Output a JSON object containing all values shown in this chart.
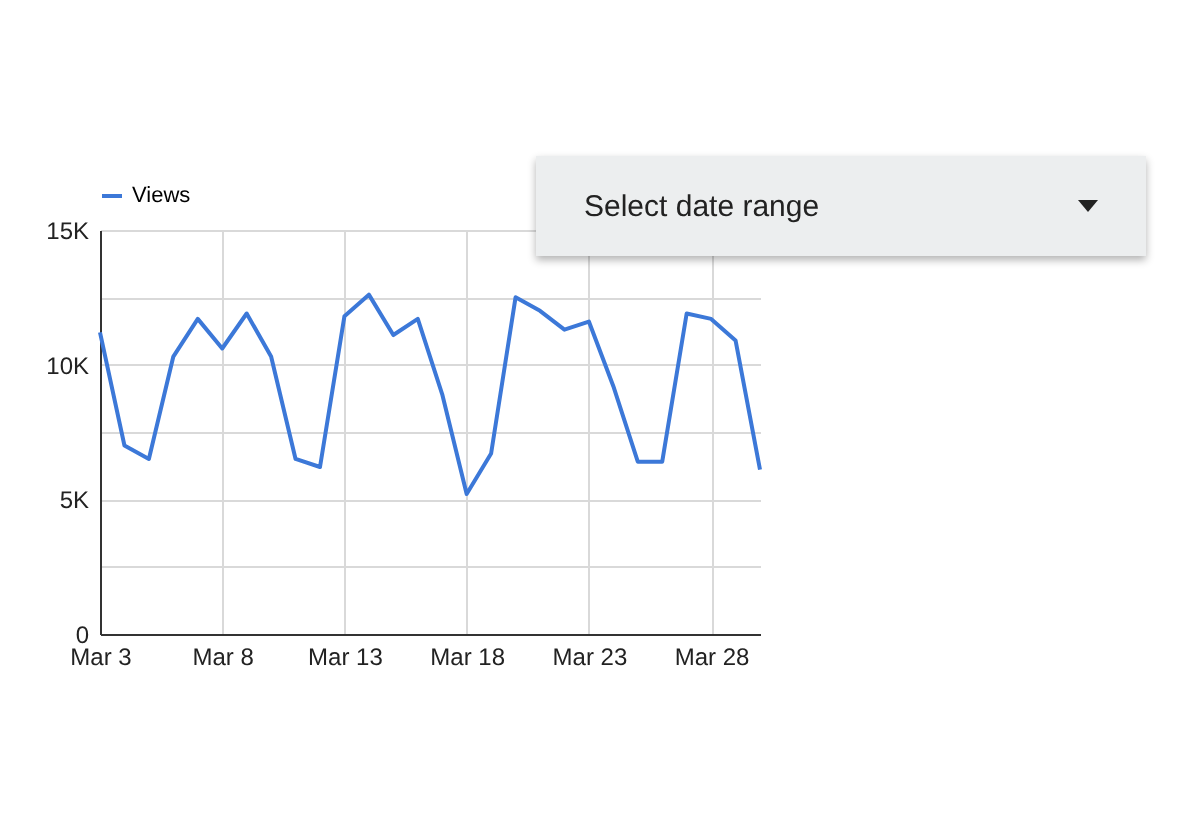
{
  "chart_data": {
    "type": "line",
    "x": [
      "--03-03",
      "--03-04",
      "--03-05",
      "--03-06",
      "--03-07",
      "--03-08",
      "--03-09",
      "--03-10",
      "--03-11",
      "--03-12",
      "--03-13",
      "--03-14",
      "--03-15",
      "--03-16",
      "--03-17",
      "--03-18",
      "--03-19",
      "--03-20",
      "--03-21",
      "--03-22",
      "--03-23",
      "--03-24",
      "--03-25",
      "--03-26",
      "--03-27",
      "--03-28",
      "--03-29",
      "--03-30"
    ],
    "series": [
      {
        "name": "Views",
        "color": "#3c78d8",
        "values": [
          11200,
          7000,
          6500,
          10300,
          11700,
          10600,
          11900,
          10300,
          6500,
          6200,
          11800,
          12600,
          11100,
          11700,
          8900,
          5200,
          6700,
          12500,
          12000,
          11300,
          11600,
          9200,
          6400,
          6400,
          11900,
          11700,
          10900,
          6100
        ]
      }
    ],
    "xlim": [
      "--03-03",
      "--03-30"
    ],
    "xticks": [
      {
        "value": "--03-03",
        "label": "Mar 3"
      },
      {
        "value": "--03-08",
        "label": "Mar 8"
      },
      {
        "value": "--03-13",
        "label": "Mar 13"
      },
      {
        "value": "--03-18",
        "label": "Mar 18"
      },
      {
        "value": "--03-23",
        "label": "Mar 23"
      },
      {
        "value": "--03-28",
        "label": "Mar 28"
      }
    ],
    "ylim": [
      0,
      15000
    ],
    "yticks": [
      {
        "value": 0,
        "label": "0"
      },
      {
        "value": 2500,
        "label": null
      },
      {
        "value": 5000,
        "label": "5K"
      },
      {
        "value": 7500,
        "label": null
      },
      {
        "value": 10000,
        "label": "10K"
      },
      {
        "value": 12500,
        "label": null
      },
      {
        "value": 15000,
        "label": "15K"
      }
    ],
    "grid": true,
    "legend": "top left",
    "marker": "none",
    "line_style": "solid",
    "annotations": [
      "Select date range"
    ]
  }
}
